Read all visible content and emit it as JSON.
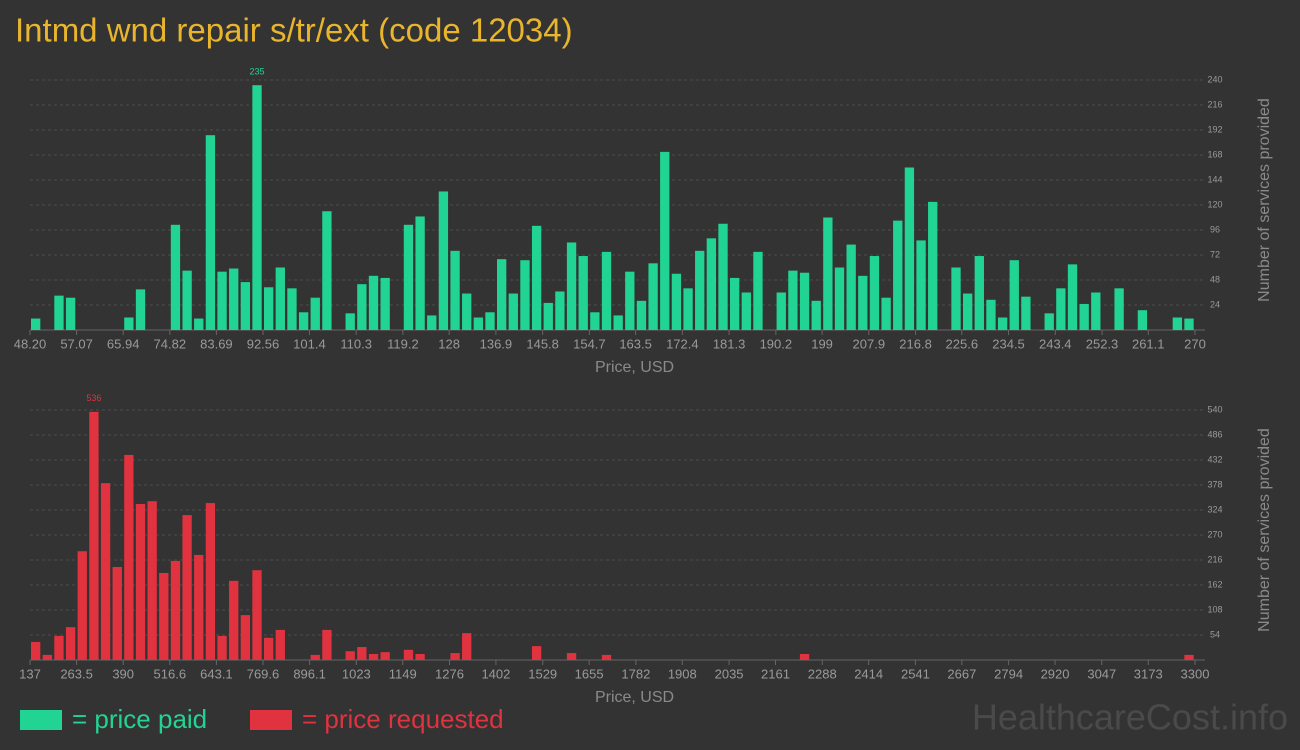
{
  "title": "Intmd wnd repair s/tr/ext (code 12034)",
  "watermark": "HealthcareCost.info",
  "chart_data": [
    {
      "type": "histogram",
      "xlabel": "Price, USD",
      "ylabel": "Number of services provided",
      "xlim": [
        48.2,
        270
      ],
      "xticks": [
        {
          "value": 48.2,
          "label": "48.20"
        },
        57.07,
        65.94,
        74.82,
        83.69,
        92.56,
        101.4,
        110.3,
        119.2,
        128,
        136.9,
        145.8,
        154.7,
        163.5,
        172.4,
        181.3,
        190.2,
        199,
        207.9,
        216.8,
        225.6,
        234.5,
        243.4,
        252.3,
        261.1,
        270
      ],
      "ylim": [
        0,
        240
      ],
      "yticks": [
        24,
        48,
        72,
        96,
        120,
        144,
        168,
        192,
        216,
        240
      ],
      "grid": true,
      "series": [
        {
          "name": "= price paid",
          "color": "#22d493",
          "values": [
            11,
            0,
            33,
            31,
            0,
            0,
            0,
            0,
            12,
            39,
            0,
            0,
            101,
            57,
            11,
            187,
            56,
            59,
            46,
            235,
            41,
            60,
            40,
            17,
            31,
            114,
            0,
            16,
            44,
            52,
            50,
            0,
            101,
            109,
            14,
            133,
            76,
            35,
            12,
            17,
            68,
            35,
            67,
            100,
            26,
            37,
            84,
            71,
            17,
            75,
            14,
            56,
            28,
            64,
            171,
            54,
            40,
            76,
            88,
            102,
            50,
            36,
            75,
            0,
            36,
            57,
            55,
            28,
            108,
            60,
            82,
            52,
            71,
            31,
            105,
            156,
            86,
            123,
            0,
            60,
            35,
            71,
            29,
            12,
            67,
            32,
            0,
            16,
            40,
            63,
            25,
            36,
            0,
            40,
            0,
            19,
            0,
            0,
            12,
            11
          ]
        }
      ]
    },
    {
      "type": "histogram",
      "xlabel": "Price, USD",
      "ylabel": "Number of services provided",
      "xlim": [
        137,
        3300
      ],
      "xticks": [
        137,
        263.5,
        390,
        516.6,
        643.1,
        769.6,
        896.1,
        1023,
        1149,
        1276,
        1402,
        1529,
        1655,
        1782,
        1908,
        2035,
        2161,
        2288,
        2414,
        2541,
        2667,
        2794,
        2920,
        3047,
        3173,
        3300
      ],
      "ylim": [
        0,
        540
      ],
      "yticks": [
        54,
        108,
        162,
        216,
        270,
        324,
        378,
        432,
        486,
        540
      ],
      "grid": true,
      "series": [
        {
          "name": "= price requested",
          "color": "#e0323f",
          "values": [
            39,
            11,
            52,
            71,
            235,
            536,
            382,
            201,
            443,
            337,
            343,
            188,
            214,
            313,
            227,
            339,
            52,
            171,
            97,
            194,
            48,
            65,
            0,
            0,
            11,
            65,
            0,
            19,
            28,
            13,
            17,
            0,
            22,
            13,
            0,
            0,
            15,
            58,
            0,
            0,
            0,
            0,
            0,
            30,
            0,
            0,
            15,
            0,
            0,
            11,
            0,
            0,
            0,
            0,
            0,
            0,
            0,
            0,
            0,
            0,
            0,
            0,
            0,
            0,
            0,
            0,
            13,
            0,
            0,
            0,
            0,
            0,
            0,
            0,
            0,
            0,
            0,
            0,
            0,
            0,
            0,
            0,
            0,
            0,
            0,
            0,
            0,
            0,
            0,
            0,
            0,
            0,
            0,
            0,
            0,
            0,
            0,
            0,
            0,
            11
          ]
        }
      ]
    }
  ]
}
